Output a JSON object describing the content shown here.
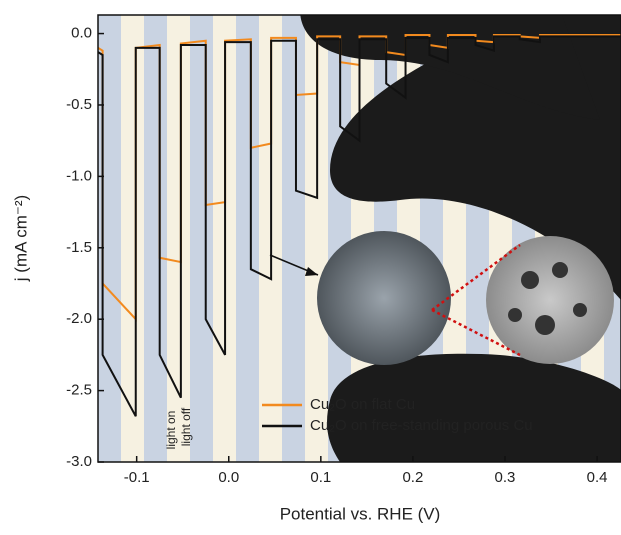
{
  "chart_data": {
    "type": "line",
    "x_label": "Potential vs. RHE (V)",
    "y_label": "j (mA cm⁻²)",
    "xlim": [
      -0.142,
      0.426
    ],
    "ylim": [
      -3.0,
      0.13
    ],
    "xticks": [
      -0.1,
      {
        "value": 0,
        "label": "0.0"
      },
      0.1,
      0.2,
      0.3,
      0.4
    ],
    "yticks": [
      {
        "value": 0,
        "label": "0.0"
      },
      -0.5,
      {
        "value": -1,
        "label": "-1.0"
      },
      -1.5,
      {
        "value": -2,
        "label": "-2.0"
      },
      -2.5,
      {
        "value": -3,
        "label": "-3.0"
      }
    ],
    "legend": "lower right",
    "annotations": [
      "light on",
      "light off"
    ],
    "series": [
      {
        "name": "Cu₂O on flat Cu",
        "color": "#f28a1e",
        "x": [
          -0.142,
          -0.137,
          -0.137,
          -0.101,
          -0.101,
          -0.075,
          -0.075,
          -0.052,
          -0.052,
          -0.025,
          -0.025,
          -0.004,
          -0.004,
          0.024,
          0.024,
          0.046,
          0.046,
          0.073,
          0.073,
          0.096,
          0.096,
          0.121,
          0.121,
          0.142,
          0.142,
          0.171,
          0.171,
          0.192,
          0.192,
          0.218,
          0.218,
          0.238,
          0.238,
          0.268,
          0.268,
          0.288,
          0.288,
          0.316,
          0.316,
          0.338,
          0.338,
          0.426
        ],
        "values": [
          -0.1,
          -0.12,
          -1.75,
          -2.0,
          -0.1,
          -0.08,
          -1.57,
          -1.6,
          -0.07,
          -0.05,
          -1.2,
          -1.18,
          -0.05,
          -0.04,
          -0.8,
          -0.77,
          -0.03,
          -0.03,
          -0.43,
          -0.42,
          -0.02,
          -0.02,
          -0.2,
          -0.22,
          -0.02,
          -0.02,
          -0.13,
          -0.15,
          -0.01,
          -0.01,
          -0.08,
          -0.1,
          -0.01,
          -0.01,
          -0.05,
          -0.06,
          -0.01,
          -0.01,
          -0.02,
          -0.03,
          -0.01,
          -0.01
        ]
      },
      {
        "name": "Cu₂O on free-standing porous Cu",
        "color": "#111111",
        "x": [
          -0.142,
          -0.137,
          -0.137,
          -0.101,
          -0.101,
          -0.075,
          -0.075,
          -0.052,
          -0.052,
          -0.025,
          -0.025,
          -0.004,
          -0.004,
          0.024,
          0.024,
          0.046,
          0.046,
          0.073,
          0.073,
          0.096,
          0.096,
          0.121,
          0.121,
          0.142,
          0.142,
          0.171,
          0.171,
          0.192,
          0.192,
          0.218,
          0.218,
          0.238,
          0.238,
          0.268,
          0.268,
          0.288,
          0.288,
          0.316,
          0.316,
          0.338,
          0.338,
          0.426
        ],
        "values": [
          -0.13,
          -0.15,
          -2.25,
          -2.68,
          -0.1,
          -0.1,
          -2.25,
          -2.55,
          -0.08,
          -0.08,
          -2.0,
          -2.25,
          -0.06,
          -0.06,
          -1.65,
          -1.72,
          -0.05,
          -0.05,
          -1.1,
          -1.15,
          -0.04,
          -0.04,
          -0.65,
          -0.75,
          -0.04,
          -0.04,
          -0.35,
          -0.45,
          -0.03,
          -0.03,
          -0.15,
          -0.2,
          -0.03,
          -0.03,
          -0.08,
          -0.12,
          -0.02,
          -0.02,
          -0.04,
          -0.06,
          -0.02,
          -0.02
        ]
      }
    ]
  }
}
